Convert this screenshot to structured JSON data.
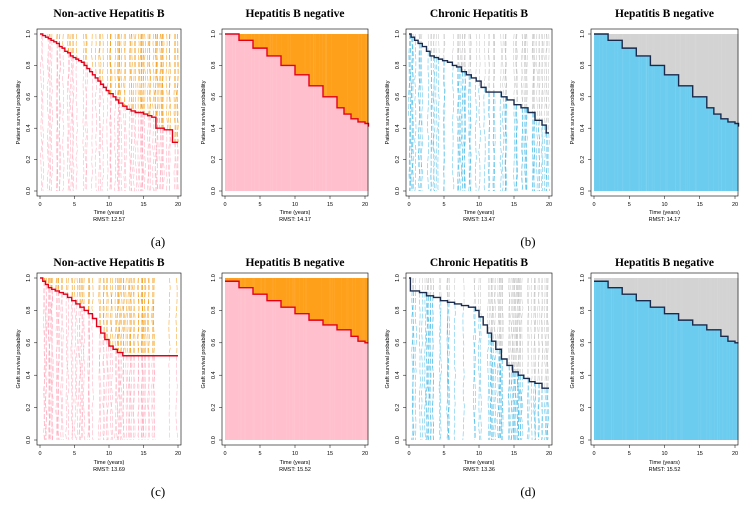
{
  "figure": {
    "panel_labels": [
      "(a)",
      "(b)",
      "(c)",
      "(d)"
    ]
  },
  "colors": {
    "pink": "#ffbfcd",
    "pink_line": "#ffa7ba",
    "orange": "#ffa01a",
    "orange_line": "#f59a12",
    "red": "#e3001b",
    "blue": "#6cccef",
    "blue_line": "#4cbde8",
    "gray": "#d3d3d3",
    "gray_line": "#c2c2c2",
    "navy": "#1a2a4d"
  },
  "chart_data": [
    {
      "type": "line",
      "title": "Non-active Hepatitis B",
      "xlabel": "Time (years)",
      "ylabel": "Patient survival probability",
      "rmst_label": "RMST: 12.57",
      "xlim": [
        0,
        20
      ],
      "ylim": [
        0,
        1
      ],
      "xticks": [
        0,
        5,
        10,
        15,
        20
      ],
      "yticks": [
        0.0,
        0.2,
        0.4,
        0.6,
        0.8,
        1.0
      ],
      "below_color": "pink",
      "above_color": "orange",
      "curve_color": "red",
      "style": "sparse",
      "x_end": 20,
      "x": [
        0,
        0.4,
        0.8,
        1.2,
        1.6,
        2.0,
        2.4,
        2.8,
        3.2,
        3.6,
        4.0,
        4.4,
        4.8,
        5.2,
        5.6,
        6.0,
        6.4,
        6.8,
        7.2,
        7.6,
        8.0,
        8.4,
        8.8,
        9.2,
        9.6,
        10.0,
        10.6,
        11.0,
        11.4,
        12.0,
        12.6,
        13.2,
        13.8,
        14.4,
        15.0,
        15.6,
        16.2,
        16.8,
        17.4,
        18.0,
        18.6,
        19.2,
        20.0
      ],
      "y": [
        1.0,
        0.99,
        0.98,
        0.97,
        0.96,
        0.95,
        0.94,
        0.92,
        0.91,
        0.89,
        0.88,
        0.86,
        0.85,
        0.84,
        0.83,
        0.82,
        0.8,
        0.78,
        0.76,
        0.74,
        0.72,
        0.7,
        0.68,
        0.66,
        0.64,
        0.62,
        0.6,
        0.58,
        0.56,
        0.54,
        0.52,
        0.51,
        0.5,
        0.5,
        0.49,
        0.48,
        0.47,
        0.4,
        0.4,
        0.39,
        0.39,
        0.31,
        0.31
      ]
    },
    {
      "type": "line",
      "title": "Hepatitis B negative",
      "xlabel": "Time (years)",
      "ylabel": "Patient survival probability",
      "rmst_label": "RMST: 14.17",
      "xlim": [
        0,
        20
      ],
      "ylim": [
        0,
        1
      ],
      "xticks": [
        0,
        5,
        10,
        15,
        20
      ],
      "yticks": [
        0.0,
        0.2,
        0.4,
        0.6,
        0.8,
        1.0
      ],
      "below_color": "pink",
      "above_color": "orange",
      "curve_color": "red",
      "style": "dense",
      "x_end": 20.5,
      "x": [
        0,
        2,
        4,
        6,
        8,
        10,
        12,
        14,
        16,
        17,
        18,
        19,
        20,
        20.5
      ],
      "y": [
        1.0,
        0.96,
        0.91,
        0.86,
        0.8,
        0.74,
        0.67,
        0.6,
        0.53,
        0.49,
        0.46,
        0.44,
        0.43,
        0.41
      ]
    },
    {
      "type": "line",
      "title": "Chronic Hepatitis B",
      "xlabel": "Time (years)",
      "ylabel": "Patient survival probability",
      "rmst_label": "RMST: 13.47",
      "xlim": [
        0,
        20
      ],
      "ylim": [
        0,
        1
      ],
      "xticks": [
        0,
        5,
        10,
        15,
        20
      ],
      "yticks": [
        0.0,
        0.2,
        0.4,
        0.6,
        0.8,
        1.0
      ],
      "below_color": "blue",
      "above_color": "gray",
      "curve_color": "navy",
      "style": "sparse",
      "x_end": 20,
      "x": [
        0,
        0.3,
        0.8,
        1.3,
        1.9,
        2.5,
        3.0,
        3.6,
        4.2,
        4.8,
        5.5,
        6.2,
        6.8,
        7.5,
        8.2,
        8.9,
        9.6,
        10.3,
        11.0,
        12.5,
        13.2,
        14.0,
        15.0,
        16.0,
        17.0,
        18.0,
        19.0,
        19.6,
        20.0
      ],
      "y": [
        1.0,
        0.98,
        0.96,
        0.94,
        0.92,
        0.89,
        0.86,
        0.85,
        0.84,
        0.83,
        0.82,
        0.8,
        0.79,
        0.76,
        0.74,
        0.72,
        0.7,
        0.66,
        0.63,
        0.63,
        0.6,
        0.58,
        0.55,
        0.53,
        0.5,
        0.45,
        0.42,
        0.37,
        0.37
      ]
    },
    {
      "type": "line",
      "title": "Hepatitis B negative",
      "xlabel": "Time (years)",
      "ylabel": "Patient survival probability",
      "rmst_label": "RMST: 14.17",
      "xlim": [
        0,
        20
      ],
      "ylim": [
        0,
        1
      ],
      "xticks": [
        0,
        5,
        10,
        15,
        20
      ],
      "yticks": [
        0.0,
        0.2,
        0.4,
        0.6,
        0.8,
        1.0
      ],
      "below_color": "blue",
      "above_color": "gray",
      "curve_color": "navy",
      "style": "dense",
      "x_end": 20.5,
      "x": [
        0,
        2,
        4,
        6,
        8,
        10,
        12,
        14,
        16,
        17,
        18,
        19,
        20,
        20.5
      ],
      "y": [
        1.0,
        0.96,
        0.91,
        0.86,
        0.8,
        0.74,
        0.67,
        0.6,
        0.53,
        0.49,
        0.46,
        0.44,
        0.43,
        0.41
      ]
    },
    {
      "type": "line",
      "title": "Non-active Hepatitis B",
      "xlabel": "Time (years)",
      "ylabel": "Graft survival probability",
      "rmst_label": "RMST: 13.69",
      "xlim": [
        0,
        20
      ],
      "ylim": [
        0,
        1
      ],
      "xticks": [
        0,
        5,
        10,
        15,
        20
      ],
      "yticks": [
        0.0,
        0.2,
        0.4,
        0.6,
        0.8,
        1.0
      ],
      "below_color": "pink",
      "above_color": "orange",
      "curve_color": "red",
      "style": "sparse",
      "x_end": 20,
      "x": [
        0,
        0.4,
        0.8,
        1.2,
        1.7,
        2.2,
        2.8,
        3.4,
        4.0,
        4.6,
        5.2,
        5.8,
        6.4,
        7.0,
        7.6,
        8.2,
        8.8,
        9.4,
        10.0,
        10.6,
        11.2,
        12.0,
        20.0
      ],
      "y": [
        1.0,
        0.98,
        0.96,
        0.94,
        0.93,
        0.92,
        0.91,
        0.9,
        0.88,
        0.86,
        0.84,
        0.82,
        0.8,
        0.78,
        0.75,
        0.7,
        0.66,
        0.62,
        0.58,
        0.56,
        0.54,
        0.52,
        0.52
      ]
    },
    {
      "type": "line",
      "title": "Hepatitis B negative",
      "xlabel": "Time (years)",
      "ylabel": "Graft survival probability",
      "rmst_label": "RMST: 15.52",
      "xlim": [
        0,
        20
      ],
      "ylim": [
        0,
        1
      ],
      "xticks": [
        0,
        5,
        10,
        15,
        20
      ],
      "yticks": [
        0.0,
        0.2,
        0.4,
        0.6,
        0.8,
        1.0
      ],
      "below_color": "pink",
      "above_color": "orange",
      "curve_color": "red",
      "style": "dense",
      "x_end": 20.5,
      "x": [
        0,
        2,
        4,
        6,
        8,
        10,
        12,
        14,
        16,
        18,
        19,
        20,
        20.5
      ],
      "y": [
        0.98,
        0.94,
        0.9,
        0.86,
        0.82,
        0.78,
        0.74,
        0.71,
        0.68,
        0.64,
        0.61,
        0.6,
        0.6
      ]
    },
    {
      "type": "line",
      "title": "Chronic Hepatitis B",
      "xlabel": "Time (years)",
      "ylabel": "Graft survival probability",
      "rmst_label": "RMST: 13.36",
      "xlim": [
        0,
        20
      ],
      "ylim": [
        0,
        1
      ],
      "xticks": [
        0,
        5,
        10,
        15,
        20
      ],
      "yticks": [
        0.0,
        0.2,
        0.4,
        0.6,
        0.8,
        1.0
      ],
      "below_color": "blue",
      "above_color": "gray",
      "curve_color": "navy",
      "style": "sparse",
      "x_end": 20,
      "x": [
        0,
        0.2,
        1.5,
        2.5,
        3.5,
        4.5,
        5.5,
        6.5,
        7.5,
        8.5,
        9.5,
        10.0,
        10.6,
        11.2,
        11.8,
        12.4,
        13.2,
        14.0,
        14.8,
        15.6,
        16.4,
        17.2,
        18.0,
        19.0,
        20.0
      ],
      "y": [
        1.0,
        0.92,
        0.91,
        0.89,
        0.88,
        0.86,
        0.85,
        0.84,
        0.83,
        0.82,
        0.8,
        0.76,
        0.71,
        0.66,
        0.61,
        0.56,
        0.5,
        0.46,
        0.42,
        0.4,
        0.38,
        0.36,
        0.35,
        0.32,
        0.32
      ]
    },
    {
      "type": "line",
      "title": "Hepatitis B negative",
      "xlabel": "Time (years)",
      "ylabel": "Graft survival probability",
      "rmst_label": "RMST: 15.52",
      "xlim": [
        0,
        20
      ],
      "ylim": [
        0,
        1
      ],
      "xticks": [
        0,
        5,
        10,
        15,
        20
      ],
      "yticks": [
        0.0,
        0.2,
        0.4,
        0.6,
        0.8,
        1.0
      ],
      "below_color": "blue",
      "above_color": "gray",
      "curve_color": "navy",
      "style": "dense",
      "x_end": 20.5,
      "x": [
        0,
        2,
        4,
        6,
        8,
        10,
        12,
        14,
        16,
        18,
        19,
        20,
        20.5
      ],
      "y": [
        0.98,
        0.94,
        0.9,
        0.86,
        0.82,
        0.78,
        0.74,
        0.71,
        0.68,
        0.64,
        0.61,
        0.6,
        0.6
      ]
    }
  ]
}
